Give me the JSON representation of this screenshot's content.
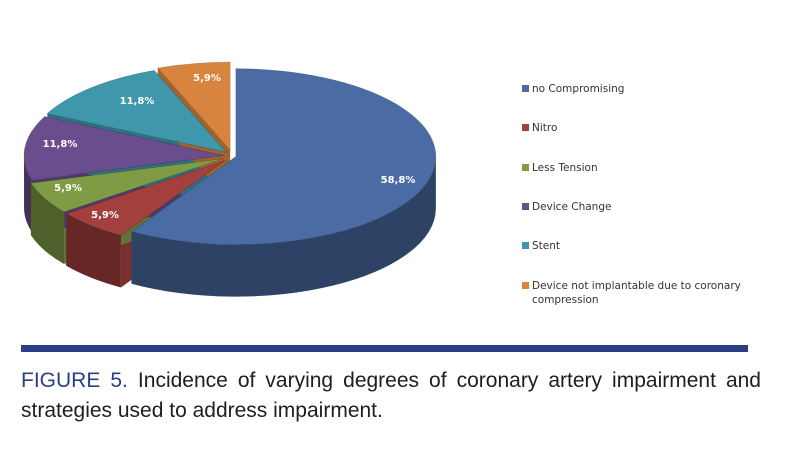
{
  "chart_data": {
    "type": "pie",
    "style": "3d-exploded",
    "title": "",
    "categories": [
      "no Compromising",
      "Nitro",
      "Less Tension",
      "Device Change",
      "Stent",
      "Device not implantable due to coronary compression"
    ],
    "values": [
      58.8,
      5.9,
      5.9,
      11.8,
      11.8,
      5.9
    ],
    "value_labels": [
      "58,8%",
      "5,9%",
      "5,9%",
      "11,8%",
      "11,8%",
      "5,9%"
    ],
    "colors": [
      "#4a6ba3",
      "#a3403d",
      "#7f9c45",
      "#6a4d8c",
      "#3f97ac",
      "#d8843e"
    ],
    "legend_position": "right"
  },
  "legend": {
    "items": [
      {
        "label": "no Compromising",
        "color": "#4a6ba3"
      },
      {
        "label": "Nitro",
        "color": "#a3403d"
      },
      {
        "label": "Less Tension",
        "color": "#7f9c45"
      },
      {
        "label": "Device Change",
        "color": "#6a4d8c"
      },
      {
        "label": "Stent",
        "color": "#3f97ac"
      },
      {
        "label": "Device not implantable due to coronary compression",
        "color": "#d8843e"
      }
    ]
  },
  "caption": {
    "figure_label": "FIGURE 5.",
    "text": " Incidence of varying degrees of coronary artery impairment and strategies used to address impairment."
  },
  "colors": {
    "rule": "#2c3f86",
    "figure_label": "#2c3f86"
  }
}
